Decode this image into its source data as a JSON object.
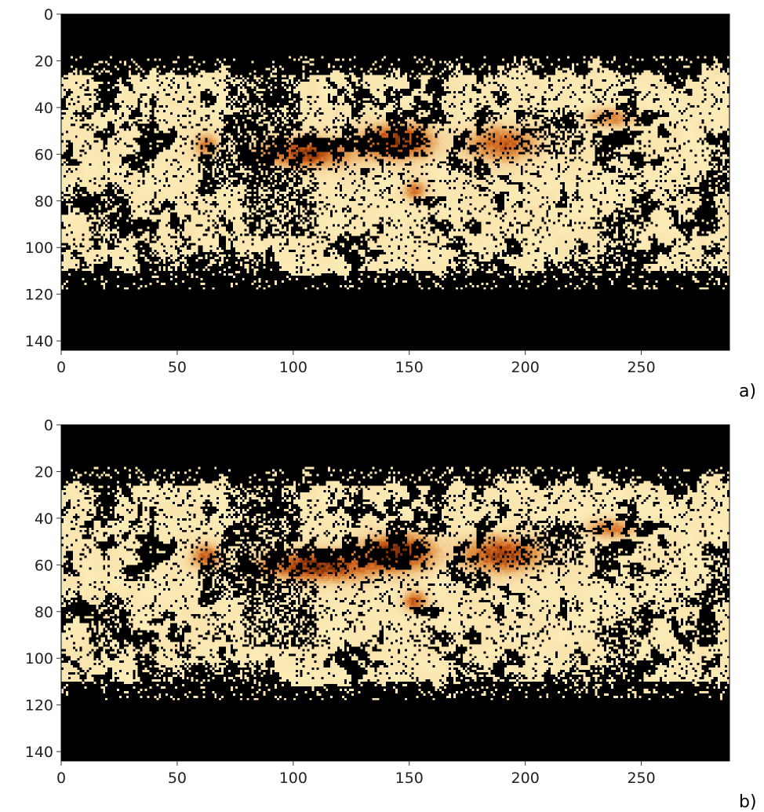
{
  "chart_data": [
    {
      "type": "heatmap",
      "panel_label": "a)",
      "xlim": [
        0,
        288
      ],
      "ylim": [
        144,
        0
      ],
      "xticks": [
        0,
        50,
        100,
        150,
        200,
        250
      ],
      "yticks": [
        0,
        20,
        40,
        60,
        80,
        100,
        120,
        140
      ],
      "background": "#000000",
      "colormap": [
        "#000000",
        "#7a2e05",
        "#c85a17",
        "#e39a4e",
        "#f5d79e",
        "#fff7c4"
      ],
      "hotspots": [
        {
          "x": 62,
          "y": 56,
          "v": 0.55,
          "rx": 5,
          "ry": 5
        },
        {
          "x": 105,
          "y": 59,
          "v": 0.9,
          "rx": 18,
          "ry": 6
        },
        {
          "x": 145,
          "y": 54,
          "v": 0.95,
          "rx": 14,
          "ry": 7
        },
        {
          "x": 190,
          "y": 55,
          "v": 0.7,
          "rx": 14,
          "ry": 7
        },
        {
          "x": 237,
          "y": 44,
          "v": 0.55,
          "rx": 10,
          "ry": 4
        },
        {
          "x": 152,
          "y": 75,
          "v": 0.6,
          "rx": 5,
          "ry": 4
        }
      ]
    },
    {
      "type": "heatmap",
      "panel_label": "b)",
      "xlim": [
        0,
        288
      ],
      "ylim": [
        144,
        0
      ],
      "xticks": [
        0,
        50,
        100,
        150,
        200,
        250
      ],
      "yticks": [
        0,
        20,
        40,
        60,
        80,
        100,
        120,
        140
      ],
      "background": "#000000",
      "colormap": [
        "#000000",
        "#7a2e05",
        "#c85a17",
        "#e39a4e",
        "#f5d79e",
        "#fff7c4"
      ],
      "hotspots": [
        {
          "x": 62,
          "y": 56,
          "v": 0.7,
          "rx": 6,
          "ry": 5
        },
        {
          "x": 110,
          "y": 60,
          "v": 1.0,
          "rx": 22,
          "ry": 6
        },
        {
          "x": 145,
          "y": 54,
          "v": 1.0,
          "rx": 14,
          "ry": 7
        },
        {
          "x": 190,
          "y": 55,
          "v": 0.85,
          "rx": 16,
          "ry": 7
        },
        {
          "x": 237,
          "y": 44,
          "v": 0.6,
          "rx": 10,
          "ry": 4
        },
        {
          "x": 152,
          "y": 75,
          "v": 0.75,
          "rx": 5,
          "ry": 4
        }
      ]
    }
  ]
}
